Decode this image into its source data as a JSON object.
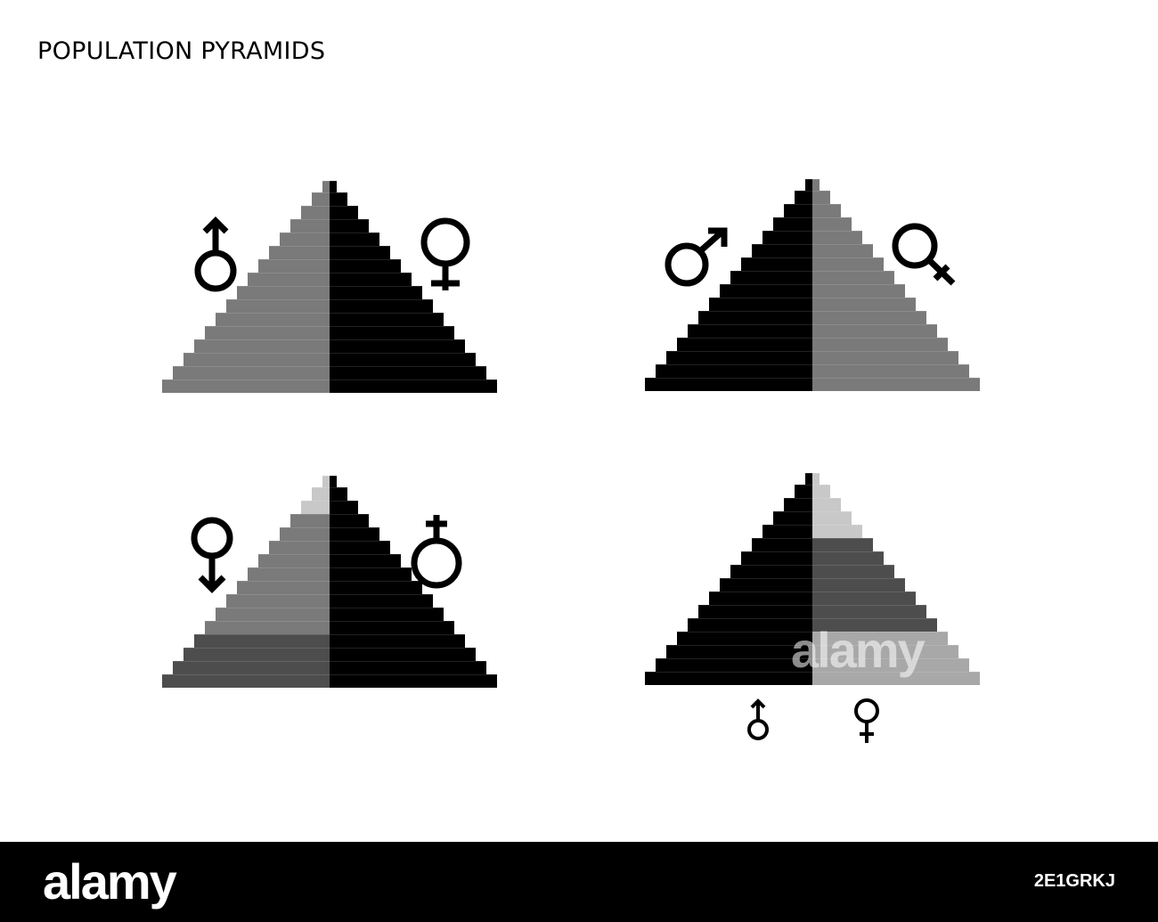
{
  "title": "POPULATION PYRAMIDS",
  "watermark": "alamy",
  "footer": {
    "logo": "alamy",
    "code": "2E1GRKJ"
  },
  "colors": {
    "black": "#000000",
    "mid_gray": "#7a7a7a",
    "dark_gray": "#4d4d4d",
    "light_gray": "#c8c8c8",
    "lighter_gray": "#a8a8a8"
  },
  "pyramids": [
    {
      "name": "pyramid-top-left",
      "left_color": "mid_gray",
      "right_color": "black",
      "symbols": [
        "male-symbol-upright",
        "female-symbol"
      ]
    },
    {
      "name": "pyramid-top-right",
      "left_color": "black",
      "right_color": "mid_gray",
      "symbols": [
        "male-symbol",
        "female-symbol-tilted"
      ]
    },
    {
      "name": "pyramid-bottom-left",
      "left_color": "gray-gradient",
      "right_color": "black",
      "symbols": [
        "female-symbol-arrow-down",
        "female-symbol-cross-top"
      ]
    },
    {
      "name": "pyramid-bottom-right",
      "left_color": "black",
      "right_color": "gray-gradient",
      "symbols": [
        "male-symbol-small",
        "female-symbol-small"
      ]
    }
  ]
}
